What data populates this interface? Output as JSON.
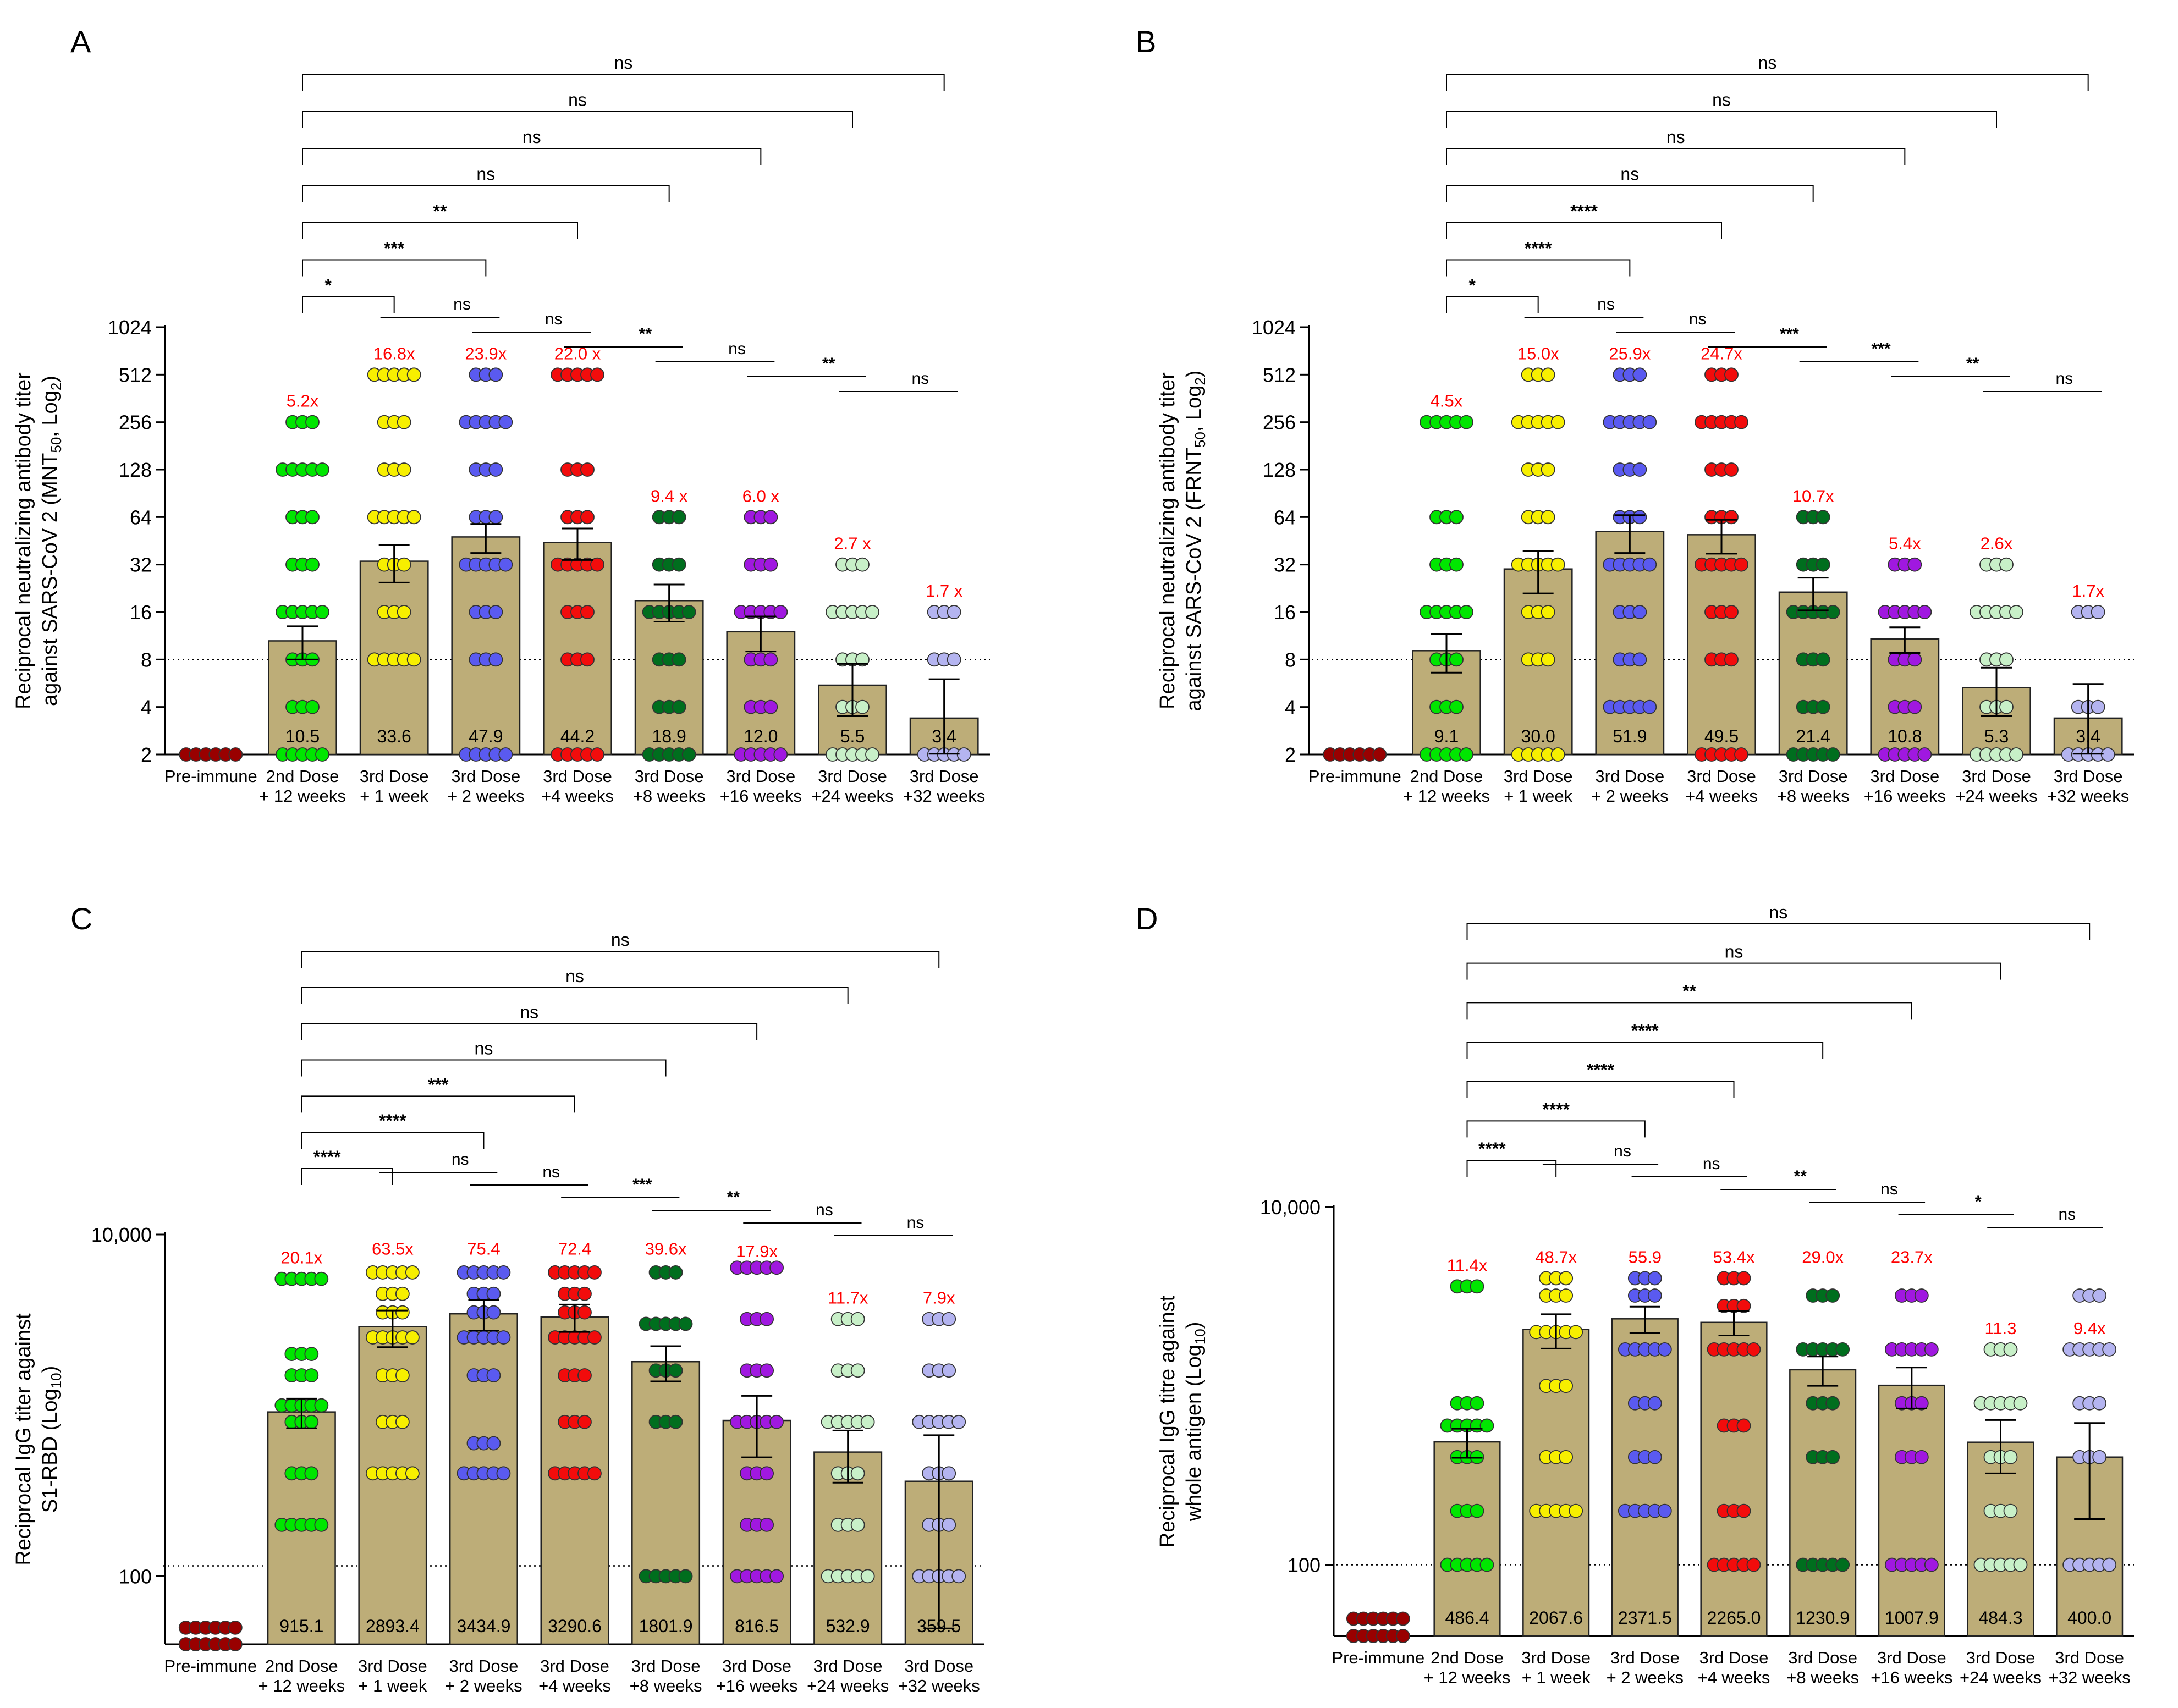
{
  "figure": {
    "description_free": true
  },
  "chart_data": [
    {
      "type": "bar",
      "panel_label": "A",
      "ylabel_lines": [
        "Reciprocal neutralizing antibody titer",
        "against SARS-CoV 2 (MNT",
        "50",
        ", Log",
        "2",
        ")"
      ],
      "scale": "log2",
      "yticks": [
        "1024",
        "512",
        "256",
        "128",
        "64",
        "32",
        "16",
        "8",
        "4",
        "2"
      ],
      "ytick_values": [
        1024,
        512,
        256,
        128,
        64,
        32,
        16,
        8,
        4,
        2
      ],
      "ylim": [
        2,
        1024
      ],
      "threshold": 8,
      "categories": [
        [
          "Pre-immune"
        ],
        [
          "2nd Dose",
          "+ 12 weeks"
        ],
        [
          "3rd Dose",
          "+ 1 week"
        ],
        [
          "3rd Dose",
          "+ 2 weeks"
        ],
        [
          "3rd Dose",
          "+4 weeks"
        ],
        [
          "3rd Dose",
          "+8 weeks"
        ],
        [
          "3rd Dose",
          "+16 weeks"
        ],
        [
          "3rd Dose",
          "+24 weeks"
        ],
        [
          "3rd Dose",
          "+32 weeks"
        ]
      ],
      "values": [
        2,
        10.5,
        33.6,
        47.9,
        44.2,
        18.9,
        12.0,
        5.5,
        3.4
      ],
      "value_labels": [
        "",
        "10.5",
        "33.6",
        "47.9",
        "44.2",
        "18.9",
        "12.0",
        "5.5",
        "3.4"
      ],
      "errors": [
        0,
        2.5,
        9,
        10,
        10,
        5,
        3,
        2,
        2.6
      ],
      "fold_labels": [
        "",
        "5.2x",
        "16.8x",
        "23.9x",
        "22.0 x",
        "9.4 x",
        "6.0 x",
        "2.7 x",
        "1.7 x"
      ],
      "fold_at": [
        0,
        256,
        512,
        512,
        512,
        64,
        64,
        32,
        16
      ],
      "point_levels": [
        [
          2
        ],
        [
          2,
          4,
          8,
          16,
          32,
          64,
          128,
          256
        ],
        [
          8,
          16,
          32,
          64,
          128,
          256,
          512
        ],
        [
          2,
          8,
          16,
          32,
          64,
          128,
          256,
          512
        ],
        [
          2,
          8,
          16,
          32,
          64,
          128,
          512
        ],
        [
          2,
          4,
          8,
          16,
          32,
          64
        ],
        [
          2,
          4,
          8,
          16,
          32,
          64
        ],
        [
          2,
          4,
          8,
          16,
          32
        ],
        [
          2,
          8,
          16
        ]
      ],
      "comparisons": [
        {
          "from": 1,
          "to": 8,
          "label": "ns"
        },
        {
          "from": 1,
          "to": 7,
          "label": "ns"
        },
        {
          "from": 1,
          "to": 6,
          "label": "ns"
        },
        {
          "from": 1,
          "to": 5,
          "label": "ns"
        },
        {
          "from": 1,
          "to": 4,
          "label": "**"
        },
        {
          "from": 1,
          "to": 3,
          "label": "***"
        },
        {
          "from": 1,
          "to": 2,
          "label": "*"
        }
      ],
      "adjacent": [
        {
          "from": 2,
          "to": 3,
          "label": "ns"
        },
        {
          "from": 3,
          "to": 4,
          "label": "ns"
        },
        {
          "from": 4,
          "to": 5,
          "label": "**"
        },
        {
          "from": 5,
          "to": 6,
          "label": "ns"
        },
        {
          "from": 6,
          "to": 7,
          "label": "**"
        },
        {
          "from": 7,
          "to": 8,
          "label": "ns"
        }
      ]
    },
    {
      "type": "bar",
      "panel_label": "B",
      "ylabel_lines": [
        "Reciprocal neutralizing antibody titer",
        "against SARS-CoV 2 (FRNT",
        "50",
        ", Log",
        "2",
        ")"
      ],
      "scale": "log2",
      "yticks": [
        "1024",
        "512",
        "256",
        "128",
        "64",
        "32",
        "16",
        "8",
        "4",
        "2"
      ],
      "ytick_values": [
        1024,
        512,
        256,
        128,
        64,
        32,
        16,
        8,
        4,
        2
      ],
      "ylim": [
        2,
        1024
      ],
      "threshold": 8,
      "categories": [
        [
          "Pre-immune"
        ],
        [
          "2nd Dose",
          "+ 12 weeks"
        ],
        [
          "3rd Dose",
          "+ 1 week"
        ],
        [
          "3rd Dose",
          "+ 2 weeks"
        ],
        [
          "3rd Dose",
          "+4 weeks"
        ],
        [
          "3rd Dose",
          "+8 weeks"
        ],
        [
          "3rd Dose",
          "+16 weeks"
        ],
        [
          "3rd Dose",
          "+24 weeks"
        ],
        [
          "3rd Dose",
          "+32 weeks"
        ]
      ],
      "values": [
        2,
        9.1,
        30.0,
        51.9,
        49.5,
        21.4,
        10.8,
        5.3,
        3.4
      ],
      "value_labels": [
        "",
        "9.1",
        "30.0",
        "51.9",
        "49.5",
        "21.4",
        "10.8",
        "5.3",
        "3.4"
      ],
      "errors": [
        0,
        2.5,
        9,
        14,
        12,
        5,
        2,
        1.8,
        2.2
      ],
      "fold_labels": [
        "",
        "4.5x",
        "15.0x",
        "25.9x",
        "24.7x",
        "10.7x",
        "5.4x",
        "2.6x",
        "1.7x"
      ],
      "fold_at": [
        0,
        256,
        512,
        512,
        512,
        64,
        32,
        32,
        16
      ],
      "point_levels": [
        [
          2
        ],
        [
          2,
          4,
          8,
          16,
          32,
          64,
          256
        ],
        [
          2,
          8,
          16,
          32,
          64,
          128,
          256,
          512
        ],
        [
          4,
          8,
          16,
          32,
          64,
          128,
          256,
          512
        ],
        [
          2,
          8,
          16,
          32,
          64,
          128,
          256,
          512
        ],
        [
          2,
          4,
          8,
          16,
          32,
          64
        ],
        [
          2,
          4,
          8,
          16,
          32
        ],
        [
          2,
          4,
          8,
          16,
          32
        ],
        [
          2,
          4,
          16
        ]
      ],
      "comparisons": [
        {
          "from": 1,
          "to": 8,
          "label": "ns"
        },
        {
          "from": 1,
          "to": 7,
          "label": "ns"
        },
        {
          "from": 1,
          "to": 6,
          "label": "ns"
        },
        {
          "from": 1,
          "to": 5,
          "label": "ns"
        },
        {
          "from": 1,
          "to": 4,
          "label": "****"
        },
        {
          "from": 1,
          "to": 3,
          "label": "****"
        },
        {
          "from": 1,
          "to": 2,
          "label": "*"
        }
      ],
      "adjacent": [
        {
          "from": 2,
          "to": 3,
          "label": "ns"
        },
        {
          "from": 3,
          "to": 4,
          "label": "ns"
        },
        {
          "from": 4,
          "to": 5,
          "label": "***"
        },
        {
          "from": 5,
          "to": 6,
          "label": "***"
        },
        {
          "from": 6,
          "to": 7,
          "label": "**"
        },
        {
          "from": 7,
          "to": 8,
          "label": "ns"
        }
      ]
    },
    {
      "type": "bar",
      "panel_label": "C",
      "ylabel_lines": [
        "Reciprocal IgG titer against",
        "S1-RBD (Log",
        "10",
        ")"
      ],
      "scale": "log10",
      "yticks": [
        "10,000",
        "100"
      ],
      "ytick_values": [
        10000,
        100
      ],
      "ylim": [
        40,
        10000
      ],
      "threshold": 115,
      "categories": [
        [
          "Pre-immune"
        ],
        [
          "2nd Dose",
          "+ 12 weeks"
        ],
        [
          "3rd Dose",
          "+ 1 week"
        ],
        [
          "3rd Dose",
          "+ 2 weeks"
        ],
        [
          "3rd Dose",
          "+4 weeks"
        ],
        [
          "3rd Dose",
          "+8 weeks"
        ],
        [
          "3rd Dose",
          "+16 weeks"
        ],
        [
          "3rd Dose",
          "+24 weeks"
        ],
        [
          "3rd Dose",
          "+32 weeks"
        ]
      ],
      "values": [
        45,
        915.1,
        2893.4,
        3434.9,
        3290.6,
        1801.9,
        816.5,
        532.9,
        359.5
      ],
      "value_labels": [
        "",
        "915.1",
        "2893.4",
        "3434.9",
        "3290.6",
        "1801.9",
        "816.5",
        "532.9",
        "359.5"
      ],
      "errors": [
        0,
        180,
        700,
        700,
        600,
        420,
        320,
        180,
        310
      ],
      "fold_labels": [
        "",
        "20.1x",
        "63.5x",
        "75.4",
        "72.4",
        "39.6x",
        "17.9x",
        "11.7x",
        "7.9x"
      ],
      "fold_at": [
        0,
        5500,
        6200,
        6200,
        6200,
        6200,
        6000,
        3200,
        3200
      ],
      "point_levels": [
        [
          40,
          50
        ],
        [
          200,
          400,
          800,
          1000,
          1500,
          2000,
          5500
        ],
        [
          400,
          800,
          1500,
          2500,
          3500,
          4500,
          6000
        ],
        [
          400,
          600,
          1500,
          2500,
          3500,
          4500,
          6000
        ],
        [
          400,
          800,
          1500,
          2500,
          3500,
          4500,
          6000
        ],
        [
          100,
          800,
          1600,
          3000,
          6000
        ],
        [
          100,
          200,
          400,
          800,
          1600,
          3200,
          6400
        ],
        [
          100,
          200,
          400,
          800,
          1600,
          3200
        ],
        [
          100,
          200,
          400,
          800,
          1600,
          3200
        ]
      ],
      "comparisons": [
        {
          "from": 1,
          "to": 8,
          "label": "ns"
        },
        {
          "from": 1,
          "to": 7,
          "label": "ns"
        },
        {
          "from": 1,
          "to": 6,
          "label": "ns"
        },
        {
          "from": 1,
          "to": 5,
          "label": "ns"
        },
        {
          "from": 1,
          "to": 4,
          "label": "***"
        },
        {
          "from": 1,
          "to": 3,
          "label": "****"
        },
        {
          "from": 1,
          "to": 2,
          "label": "****"
        }
      ],
      "adjacent": [
        {
          "from": 2,
          "to": 3,
          "label": "ns"
        },
        {
          "from": 3,
          "to": 4,
          "label": "ns"
        },
        {
          "from": 4,
          "to": 5,
          "label": "***"
        },
        {
          "from": 5,
          "to": 6,
          "label": "**"
        },
        {
          "from": 6,
          "to": 7,
          "label": "ns"
        },
        {
          "from": 7,
          "to": 8,
          "label": "ns"
        }
      ]
    },
    {
      "type": "bar",
      "panel_label": "D",
      "ylabel_lines": [
        "Reciprocal IgG titre against",
        "whole antigen (Log",
        "10",
        ")"
      ],
      "scale": "log10",
      "yticks": [
        "10,000",
        "100"
      ],
      "ytick_values": [
        10000,
        100
      ],
      "ylim": [
        40,
        10000
      ],
      "threshold": 100,
      "categories": [
        [
          "Pre-immune"
        ],
        [
          "2nd Dose",
          "+ 12 weeks"
        ],
        [
          "3rd Dose",
          "+ 1 week"
        ],
        [
          "3rd Dose",
          "+ 2 weeks"
        ],
        [
          "3rd Dose",
          "+4 weeks"
        ],
        [
          "3rd Dose",
          "+8 weeks"
        ],
        [
          "3rd Dose",
          "+16 weeks"
        ],
        [
          "3rd Dose",
          "+24 weeks"
        ],
        [
          "3rd Dose",
          "+32 weeks"
        ]
      ],
      "values": [
        42,
        486.4,
        2067.6,
        2371.5,
        2265.0,
        1230.9,
        1007.9,
        484.3,
        400.0
      ],
      "value_labels": [
        "",
        "486.4",
        "2067.6",
        "2371.5",
        "2265.0",
        "1230.9",
        "1007.9",
        "484.3",
        "400.0"
      ],
      "errors": [
        0,
        90,
        450,
        400,
        350,
        230,
        260,
        160,
        220
      ],
      "fold_labels": [
        "",
        "11.4x",
        "48.7x",
        "55.9",
        "53.4x",
        "29.0x",
        "23.7x",
        "11.3",
        "9.4x"
      ],
      "fold_at": [
        0,
        3600,
        4000,
        4000,
        4000,
        4000,
        4000,
        1600,
        1600
      ],
      "point_levels": [
        [
          40,
          50
        ],
        [
          100,
          200,
          400,
          600,
          800,
          3600
        ],
        [
          200,
          400,
          1000,
          2000,
          3200,
          4000
        ],
        [
          200,
          400,
          800,
          1600,
          3200,
          4000
        ],
        [
          100,
          200,
          600,
          1600,
          2800,
          4000
        ],
        [
          100,
          400,
          800,
          1600,
          3200
        ],
        [
          100,
          400,
          800,
          1600,
          3200
        ],
        [
          100,
          200,
          400,
          800,
          1600
        ],
        [
          100,
          400,
          800,
          1600,
          3200
        ]
      ],
      "comparisons": [
        {
          "from": 1,
          "to": 8,
          "label": "ns"
        },
        {
          "from": 1,
          "to": 7,
          "label": "ns"
        },
        {
          "from": 1,
          "to": 6,
          "label": "**"
        },
        {
          "from": 1,
          "to": 5,
          "label": "****"
        },
        {
          "from": 1,
          "to": 4,
          "label": "****"
        },
        {
          "from": 1,
          "to": 3,
          "label": "****"
        },
        {
          "from": 1,
          "to": 2,
          "label": "****"
        }
      ],
      "adjacent": [
        {
          "from": 2,
          "to": 3,
          "label": "ns"
        },
        {
          "from": 3,
          "to": 4,
          "label": "ns"
        },
        {
          "from": 4,
          "to": 5,
          "label": "**"
        },
        {
          "from": 5,
          "to": 6,
          "label": "ns"
        },
        {
          "from": 6,
          "to": 7,
          "label": "*"
        },
        {
          "from": 7,
          "to": 8,
          "label": "ns"
        }
      ]
    }
  ],
  "colors": {
    "bar_fill": "#bdad78",
    "bar_stroke": "#222222",
    "fold_text": "#ff0000",
    "points": [
      "#990000",
      "#00e600",
      "#f7ef00",
      "#5a5af0",
      "#f20c0c",
      "#006e1e",
      "#a018e0",
      "#c8f0c8",
      "#b4b4f0"
    ]
  }
}
